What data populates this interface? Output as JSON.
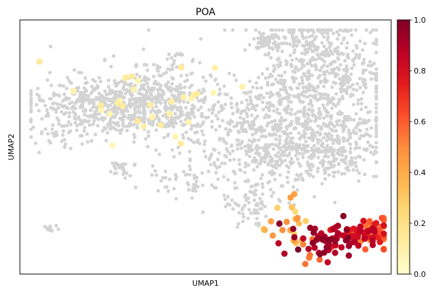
{
  "chart_data": {
    "type": "scatter",
    "title": "POA",
    "xlabel": "UMAP1",
    "ylabel": "UMAP2",
    "grid": false,
    "axis_ticks": false,
    "background_color": "#d3d3d3",
    "colormap": "YlOrRd",
    "colorbar": {
      "min": 0.0,
      "max": 1.0,
      "ticks": [
        "0.0",
        "0.2",
        "0.4",
        "0.6",
        "0.8",
        "1.0"
      ],
      "stops": [
        "#ffffcc",
        "#ffeda0",
        "#fed976",
        "#feb24c",
        "#fd8d3c",
        "#fc4e2a",
        "#e31a1c",
        "#bd0026",
        "#800026"
      ]
    },
    "background_groups": [
      {
        "cx": 0.245,
        "cy": 0.335,
        "sx": 0.105,
        "sy": 0.055,
        "n": 520
      },
      {
        "cx": 0.385,
        "cy": 0.3,
        "sx": 0.075,
        "sy": 0.075,
        "n": 260
      },
      {
        "cx": 0.65,
        "cy": 0.41,
        "sx": 0.12,
        "sy": 0.09,
        "n": 420
      },
      {
        "cx": 0.825,
        "cy": 0.23,
        "sx": 0.085,
        "sy": 0.12,
        "n": 480
      },
      {
        "cx": 0.73,
        "cy": 0.54,
        "sx": 0.1,
        "sy": 0.065,
        "n": 260
      },
      {
        "cx": 0.86,
        "cy": 0.48,
        "sx": 0.06,
        "sy": 0.07,
        "n": 170
      },
      {
        "cx": 0.77,
        "cy": 0.09,
        "sx": 0.06,
        "sy": 0.04,
        "n": 90
      },
      {
        "cx": 0.63,
        "cy": 0.72,
        "sx": 0.045,
        "sy": 0.06,
        "n": 80
      },
      {
        "cx": 0.44,
        "cy": 0.64,
        "sx": 0.04,
        "sy": 0.04,
        "n": 50
      },
      {
        "cx": 0.27,
        "cy": 0.58,
        "sx": 0.02,
        "sy": 0.015,
        "n": 25
      },
      {
        "cx": 0.66,
        "cy": 0.08,
        "sx": 0.035,
        "sy": 0.025,
        "n": 45
      },
      {
        "cx": 0.43,
        "cy": 0.14,
        "sx": 0.01,
        "sy": 0.006,
        "n": 8
      },
      {
        "cx": 0.08,
        "cy": 0.82,
        "sx": 0.01,
        "sy": 0.006,
        "n": 14
      },
      {
        "cx": 0.13,
        "cy": 0.45,
        "sx": 0.05,
        "sy": 0.03,
        "n": 40
      }
    ],
    "expressing_groups": [
      {
        "cx": 0.82,
        "cy": 0.87,
        "sx": 0.04,
        "sy": 0.04,
        "n": 55,
        "vmin": 0.85,
        "vmax": 1.0
      },
      {
        "cx": 0.92,
        "cy": 0.84,
        "sx": 0.04,
        "sy": 0.03,
        "n": 45,
        "vmin": 0.7,
        "vmax": 0.9
      },
      {
        "cx": 0.96,
        "cy": 0.84,
        "sx": 0.03,
        "sy": 0.03,
        "n": 30,
        "vmin": 0.45,
        "vmax": 0.65
      },
      {
        "cx": 0.72,
        "cy": 0.79,
        "sx": 0.04,
        "sy": 0.05,
        "n": 22,
        "vmin": 0.2,
        "vmax": 0.5
      },
      {
        "cx": 0.33,
        "cy": 0.32,
        "sx": 0.12,
        "sy": 0.1,
        "n": 32,
        "vmin": 0.05,
        "vmax": 0.15
      },
      {
        "cx": 0.77,
        "cy": 0.92,
        "sx": 0.02,
        "sy": 0.02,
        "n": 6,
        "vmin": 0.5,
        "vmax": 0.6
      }
    ]
  }
}
